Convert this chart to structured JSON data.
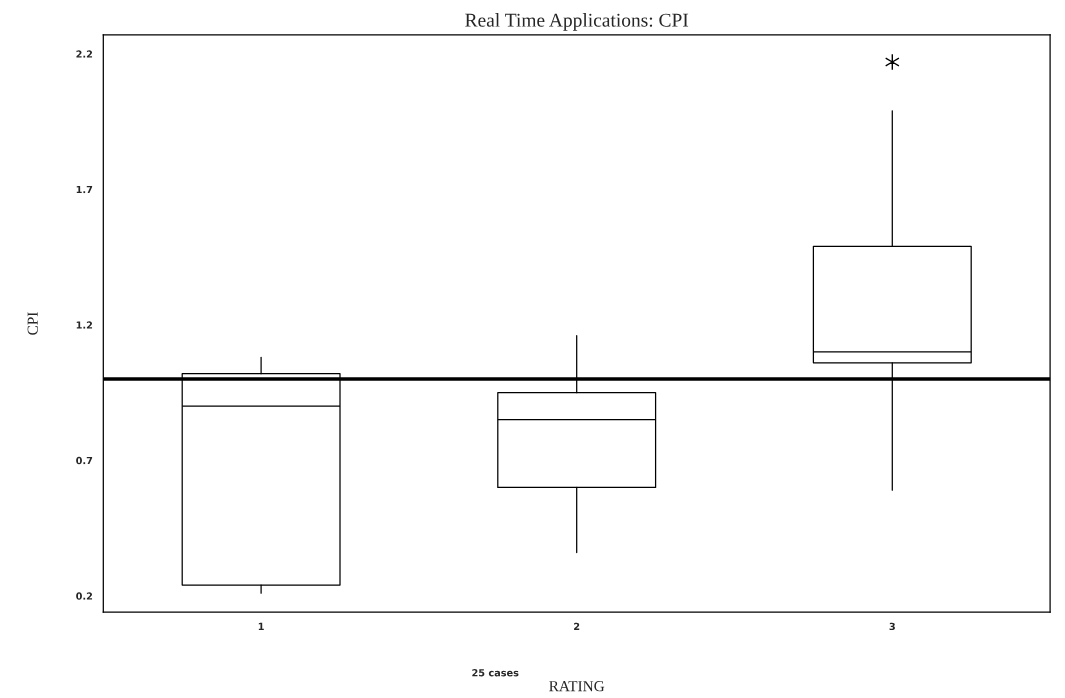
{
  "chart_data": {
    "type": "box",
    "title": "Real Time Applications: CPI",
    "xlabel": "RATING",
    "ylabel": "CPI",
    "categories": [
      "1",
      "2",
      "3"
    ],
    "boxes": [
      {
        "low": 0.21,
        "q1": 0.24,
        "median": 0.9,
        "q3": 1.02,
        "high": 1.08
      },
      {
        "low": 0.36,
        "q1": 0.6,
        "median": 0.85,
        "q3": 0.95,
        "high": 1.16
      },
      {
        "low": 0.59,
        "q1": 1.06,
        "median": 1.1,
        "q3": 1.49,
        "high": 1.99,
        "outliers": [
          2.17
        ]
      }
    ],
    "ylim": [
      0.14,
      2.27
    ],
    "yticks": [
      0.2,
      0.7,
      1.2,
      1.7,
      2.2
    ],
    "ref_lines": [
      {
        "axis": "y",
        "value": 1.0
      }
    ],
    "annotations": [
      "25 cases"
    ],
    "grid": false,
    "legend": false
  }
}
